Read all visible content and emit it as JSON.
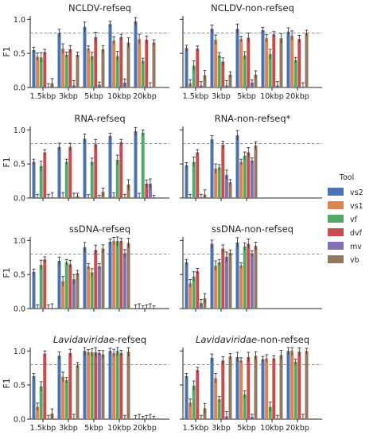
{
  "legend": {
    "title": "Tool",
    "items": [
      {
        "name": "vs2",
        "color": "#4c72b0"
      },
      {
        "name": "vs1",
        "color": "#dd8452"
      },
      {
        "name": "vf",
        "color": "#55a868"
      },
      {
        "name": "dvf",
        "color": "#c44e52"
      },
      {
        "name": "mv",
        "color": "#8172b3"
      },
      {
        "name": "vb",
        "color": "#937860"
      }
    ]
  },
  "chart_data": [
    {
      "type": "bar",
      "title": "NCLDV-refseq",
      "ylabel": "F1",
      "ylim": [
        0,
        1.05
      ],
      "reference_line": 0.8,
      "categories": [
        "1.5kbp",
        "3kbp",
        "5kbp",
        "10kbp",
        "20kbp"
      ],
      "series": [
        {
          "name": "vs2",
          "values": [
            0.55,
            0.8,
            0.89,
            0.93,
            0.97
          ]
        },
        {
          "name": "vs1",
          "values": [
            0.45,
            0.57,
            0.57,
            0.69,
            0.71
          ]
        },
        {
          "name": "vf",
          "values": [
            0.44,
            0.48,
            0.46,
            0.46,
            0.39
          ]
        },
        {
          "name": "dvf",
          "values": [
            0.52,
            0.56,
            0.74,
            0.74,
            0.7
          ]
        },
        {
          "name": "mv",
          "values": [
            0.0,
            0.03,
            0.04,
            0.07,
            0.0
          ]
        },
        {
          "name": "vb",
          "values": [
            0.06,
            0.48,
            0.56,
            0.66,
            0.66
          ]
        }
      ]
    },
    {
      "type": "bar",
      "title": "NCLDV-non-refseq",
      "ylabel": "",
      "ylim": [
        0,
        1.05
      ],
      "reference_line": 0.8,
      "categories": [
        "1.5kbp",
        "3kbp",
        "5kbp",
        "10kbp",
        "20kbp"
      ],
      "series": [
        {
          "name": "vs2",
          "values": [
            0.58,
            0.86,
            0.86,
            0.84,
            0.82
          ]
        },
        {
          "name": "vs1",
          "values": [
            0.06,
            0.7,
            0.71,
            0.72,
            0.76
          ]
        },
        {
          "name": "vf",
          "values": [
            0.32,
            0.47,
            0.47,
            0.49,
            0.4
          ]
        },
        {
          "name": "dvf",
          "values": [
            0.57,
            0.38,
            0.73,
            0.78,
            0.71
          ]
        },
        {
          "name": "mv",
          "values": [
            0.03,
            0.03,
            0.07,
            0.03,
            0.0
          ]
        },
        {
          "name": "vb",
          "values": [
            0.18,
            0.19,
            0.19,
            0.72,
            0.8
          ]
        }
      ]
    },
    {
      "type": "bar",
      "title": "RNA-refseq",
      "ylabel": "F1",
      "ylim": [
        0,
        1.05
      ],
      "reference_line": 0.8,
      "categories": [
        "1.5kbp",
        "3kbp",
        "5kbp",
        "10kbp",
        "20kbp"
      ],
      "series": [
        {
          "name": "vs2",
          "values": [
            0.53,
            0.75,
            0.87,
            0.91,
            0.98
          ]
        },
        {
          "name": "vs1",
          "values": [
            0.0,
            0.01,
            0.01,
            0.02,
            0.0
          ]
        },
        {
          "name": "vf",
          "values": [
            0.47,
            0.53,
            0.53,
            0.56,
            0.96
          ]
        },
        {
          "name": "dvf",
          "values": [
            0.67,
            0.75,
            0.79,
            0.82,
            0.21
          ]
        },
        {
          "name": "mv",
          "values": [
            0.0,
            0.0,
            0.0,
            0.0,
            0.21
          ]
        },
        {
          "name": "vb",
          "values": [
            0.01,
            0.03,
            0.09,
            0.2,
            0.0
          ]
        }
      ]
    },
    {
      "type": "bar",
      "title": "RNA-non-refseq*",
      "ylabel": "",
      "ylim": [
        0,
        1.05
      ],
      "reference_line": 0.8,
      "categories": [
        "1.5kbp",
        "3kbp",
        "5kbp"
      ],
      "series": [
        {
          "name": "vs2",
          "values": [
            0.48,
            0.86,
            0.92
          ]
        },
        {
          "name": "vs1",
          "values": [
            0.0,
            0.43,
            0.53
          ]
        },
        {
          "name": "vf",
          "values": [
            0.53,
            0.45,
            0.62
          ]
        },
        {
          "name": "dvf",
          "values": [
            0.67,
            0.78,
            0.67
          ]
        },
        {
          "name": "mv",
          "values": [
            0.0,
            0.34,
            0.55
          ]
        },
        {
          "name": "vb",
          "values": [
            0.05,
            0.23,
            0.77
          ]
        }
      ]
    },
    {
      "type": "bar",
      "title": "ssDNA-refseq",
      "ylabel": "F1",
      "ylim": [
        0,
        1.05
      ],
      "reference_line": 0.8,
      "categories": [
        "1.5kbp",
        "3kbp",
        "5kbp",
        "10kbp",
        "20kbp"
      ],
      "series": [
        {
          "name": "vs2",
          "values": [
            0.54,
            0.7,
            0.9,
            0.98,
            0.0
          ]
        },
        {
          "name": "vs1",
          "values": [
            0.0,
            0.4,
            0.62,
            0.99,
            0.0
          ]
        },
        {
          "name": "vf",
          "values": [
            0.64,
            0.68,
            0.53,
            0.99,
            0.0
          ]
        },
        {
          "name": "dvf",
          "values": [
            0.72,
            0.65,
            0.86,
            0.99,
            0.0
          ]
        },
        {
          "name": "mv",
          "values": [
            0.0,
            0.43,
            0.62,
            0.81,
            0.0
          ]
        },
        {
          "name": "vb",
          "values": [
            0.0,
            0.52,
            0.88,
            0.96,
            0.0
          ]
        }
      ]
    },
    {
      "type": "bar",
      "title": "ssDNA-non-refseq",
      "ylabel": "",
      "ylim": [
        0,
        1.05
      ],
      "reference_line": 0.8,
      "categories": [
        "1.5kbp",
        "3kbp",
        "5kbp"
      ],
      "series": [
        {
          "name": "vs2",
          "values": [
            0.68,
            0.95,
            0.97
          ]
        },
        {
          "name": "vs1",
          "values": [
            0.37,
            0.63,
            0.63
          ]
        },
        {
          "name": "vf",
          "values": [
            0.47,
            0.68,
            0.91
          ]
        },
        {
          "name": "dvf",
          "values": [
            0.55,
            0.88,
            0.95
          ]
        },
        {
          "name": "mv",
          "values": [
            0.08,
            0.76,
            0.81
          ]
        },
        {
          "name": "vb",
          "values": [
            0.15,
            0.82,
            0.92
          ]
        }
      ]
    },
    {
      "type": "bar",
      "title": "Lavidaviridae-refseq",
      "title_italic": "Lavidaviridae",
      "title_suffix": "-refseq",
      "ylabel": "F1",
      "ylim": [
        0,
        1.05
      ],
      "reference_line": 0.8,
      "categories": [
        "1.5kbp",
        "3kbp",
        "5kbp",
        "10kbp",
        "20kbp"
      ],
      "series": [
        {
          "name": "vs2",
          "values": [
            0.63,
            0.93,
            1.0,
            1.0,
            0.0
          ]
        },
        {
          "name": "vs1",
          "values": [
            0.18,
            0.62,
            0.98,
            0.97,
            0.0
          ]
        },
        {
          "name": "vf",
          "values": [
            0.48,
            0.57,
            0.98,
            1.0,
            0.0
          ]
        },
        {
          "name": "dvf",
          "values": [
            0.96,
            0.97,
            0.98,
            0.97,
            0.0
          ]
        },
        {
          "name": "mv",
          "values": [
            0.0,
            0.0,
            0.97,
            0.0,
            0.0
          ]
        },
        {
          "name": "vb",
          "values": [
            0.08,
            0.79,
            0.95,
            0.99,
            0.0
          ]
        }
      ]
    },
    {
      "type": "bar",
      "title": "Lavidaviridae-non-refseq",
      "title_italic": "Lavidaviridae",
      "title_suffix": "-non-refseq",
      "ylabel": "",
      "ylim": [
        0,
        1.05
      ],
      "reference_line": 0.8,
      "categories": [
        "1.5kbp",
        "3kbp",
        "5kbp",
        "10kbp",
        "20kbp"
      ],
      "series": [
        {
          "name": "vs2",
          "values": [
            0.63,
            0.9,
            0.91,
            0.88,
            1.0
          ]
        },
        {
          "name": "vs1",
          "values": [
            0.24,
            0.6,
            0.86,
            0.89,
            1.0
          ]
        },
        {
          "name": "vf",
          "values": [
            0.49,
            0.29,
            0.36,
            0.18,
            0.84
          ]
        },
        {
          "name": "dvf",
          "values": [
            0.72,
            0.86,
            0.91,
            0.89,
            0.99
          ]
        },
        {
          "name": "mv",
          "values": [
            0.0,
            0.04,
            0.03,
            0.0,
            0.0
          ]
        },
        {
          "name": "vb",
          "values": [
            0.16,
            0.92,
            0.93,
            0.94,
            1.0
          ]
        }
      ]
    }
  ]
}
